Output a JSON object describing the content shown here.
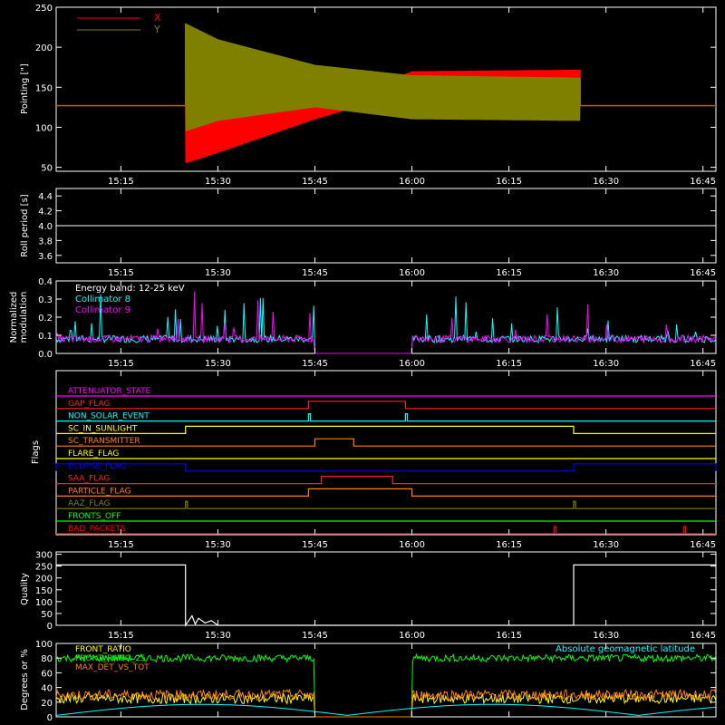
{
  "x_ticks": [
    "15:15",
    "15:30",
    "15:45",
    "16:00",
    "16:15",
    "16:30",
    "16:45"
  ],
  "chart_data": [
    {
      "type": "line",
      "name": "pointing",
      "ylabel": "Pointing [\"]",
      "ylim": [
        45,
        250
      ],
      "yticks": [
        50,
        100,
        150,
        200,
        250
      ],
      "xlim": [
        "15:05",
        "16:47"
      ],
      "legend_placement": "top-left",
      "series": [
        {
          "name": "X",
          "color": "#ff0000",
          "start": "15:25",
          "end": "16:26",
          "pre_value": 127,
          "envelope_min": [
            [
              "15:25",
              55
            ],
            [
              "15:30",
              68
            ],
            [
              "15:45",
              110
            ],
            [
              "15:51",
              124
            ],
            [
              "16:00",
              128
            ],
            [
              "16:26",
              128
            ]
          ],
          "envelope_max": [
            [
              "15:25",
              125
            ],
            [
              "15:30",
              116
            ],
            [
              "15:45",
              128
            ],
            [
              "15:51",
              140
            ],
            [
              "16:00",
              170
            ],
            [
              "16:26",
              172
            ]
          ]
        },
        {
          "name": "Y",
          "color": "#808000",
          "start": "15:25",
          "end": "16:26",
          "pre_value": 127,
          "envelope_min": [
            [
              "15:25",
              95
            ],
            [
              "15:30",
              108
            ],
            [
              "15:45",
              125
            ],
            [
              "16:00",
              110
            ],
            [
              "16:26",
              108
            ]
          ],
          "envelope_max": [
            [
              "15:25",
              230
            ],
            [
              "15:30",
              210
            ],
            [
              "15:45",
              178
            ],
            [
              "16:00",
              165
            ],
            [
              "16:26",
              162
            ]
          ]
        }
      ]
    },
    {
      "type": "line",
      "name": "roll",
      "ylabel": "Roll period [s]",
      "ylim": [
        3.5,
        4.5
      ],
      "yticks": [
        3.6,
        3.8,
        4.0,
        4.2,
        4.4
      ],
      "series": [
        {
          "name": "",
          "color": "#ffffff",
          "points": [
            [
              "15:05",
              4.0
            ],
            [
              "16:47",
              4.0
            ]
          ]
        }
      ]
    },
    {
      "type": "line",
      "name": "modulation",
      "ylabel": "Normalized modulation",
      "ylim": [
        0.0,
        0.4
      ],
      "yticks": [
        0.0,
        0.1,
        0.2,
        0.3,
        0.4
      ],
      "annotation": "Energy band: 12-25 keV",
      "legend_placement": "top-left",
      "gap": [
        "15:45",
        "16:00"
      ],
      "series": [
        {
          "name": "Collimator 8",
          "color": "#00ffff",
          "baseline": 0.08
        },
        {
          "name": "Collimator 9",
          "color": "#ff00ff",
          "baseline": 0.08
        }
      ]
    },
    {
      "type": "line",
      "name": "flags",
      "ylabel": "Flags",
      "series": [
        {
          "name": "ATTENUATOR_STATE",
          "color": "#ff00ff",
          "high": []
        },
        {
          "name": "GAP_FLAG",
          "color": "#ff2020",
          "high": [
            [
              "15:44",
              "15:59"
            ]
          ]
        },
        {
          "name": "NON_SOLAR_EVENT",
          "color": "#00ffff",
          "high": [
            [
              "15:44",
              "15:44.3"
            ],
            [
              "15:59",
              "15:59.3"
            ]
          ]
        },
        {
          "name": "SC_IN_SUNLIGHT",
          "color": "#ffff00",
          "high": [
            [
              "15:25",
              "16:25"
            ]
          ]
        },
        {
          "name": "SC_TRANSMITTER",
          "color": "#ff8000",
          "high": [
            [
              "15:45",
              "15:51"
            ]
          ]
        },
        {
          "name": "FLARE_FLAG",
          "color": "#ffff00",
          "high": []
        },
        {
          "name": "ECLIPSE_FLAG",
          "color": "#0000ff",
          "low_default": false,
          "high": [
            [
              "15:05",
              "15:25"
            ],
            [
              "16:25",
              "16:47"
            ]
          ]
        },
        {
          "name": "SAA_FLAG",
          "color": "#ff2020",
          "high": [
            [
              "15:46",
              "15:57"
            ]
          ]
        },
        {
          "name": "PARTICLE_FLAG",
          "color": "#ff8000",
          "high": [
            [
              "15:44",
              "16:00"
            ]
          ]
        },
        {
          "name": "AAZ_FLAG",
          "color": "#808000",
          "high": [
            [
              "15:25",
              "15:25.3"
            ],
            [
              "16:25",
              "16:25.3"
            ]
          ]
        },
        {
          "name": "FRONTS_OFF",
          "color": "#00ff00",
          "high": []
        },
        {
          "name": "BAD_PACKETS",
          "color": "#ff0000",
          "high": [
            [
              "16:22",
              "16:22.3"
            ],
            [
              "16:42",
              "16:42.3"
            ]
          ]
        }
      ]
    },
    {
      "type": "line",
      "name": "quality",
      "ylabel": "Quality",
      "ylim": [
        0,
        310
      ],
      "yticks": [
        0,
        50,
        100,
        150,
        200,
        250,
        300
      ],
      "series": [
        {
          "name": "",
          "color": "#ffffff",
          "points": [
            [
              "15:05",
              255
            ],
            [
              "15:25",
              255
            ],
            [
              "15:25",
              0
            ],
            [
              "15:26",
              40
            ],
            [
              "15:26.5",
              5
            ],
            [
              "15:27",
              30
            ],
            [
              "15:28",
              10
            ],
            [
              "15:29",
              20
            ],
            [
              "15:30",
              0
            ],
            [
              "16:25",
              0
            ],
            [
              "16:25",
              255
            ],
            [
              "16:47",
              255
            ]
          ]
        }
      ]
    },
    {
      "type": "line",
      "name": "degrees",
      "ylabel": "Degrees or %",
      "ylim": [
        0,
        100
      ],
      "yticks": [
        0,
        20,
        40,
        60,
        80,
        100
      ],
      "legend_placement": "top-left",
      "annotation": "Absolute geomagnetic latitude",
      "gap": [
        "15:45",
        "16:00"
      ],
      "series": [
        {
          "name": "FRONT_RATIO",
          "color": "#ffff00",
          "baseline": 25
        },
        {
          "name": "FRONT_RATIO_25",
          "color": "#00ff00",
          "baseline": 80
        },
        {
          "name": "MAX_DET_VS_TOT",
          "color": "#ff8000",
          "baseline": 30
        },
        {
          "name": "Absolute geomagnetic latitude",
          "color": "#00ffff"
        }
      ]
    }
  ]
}
